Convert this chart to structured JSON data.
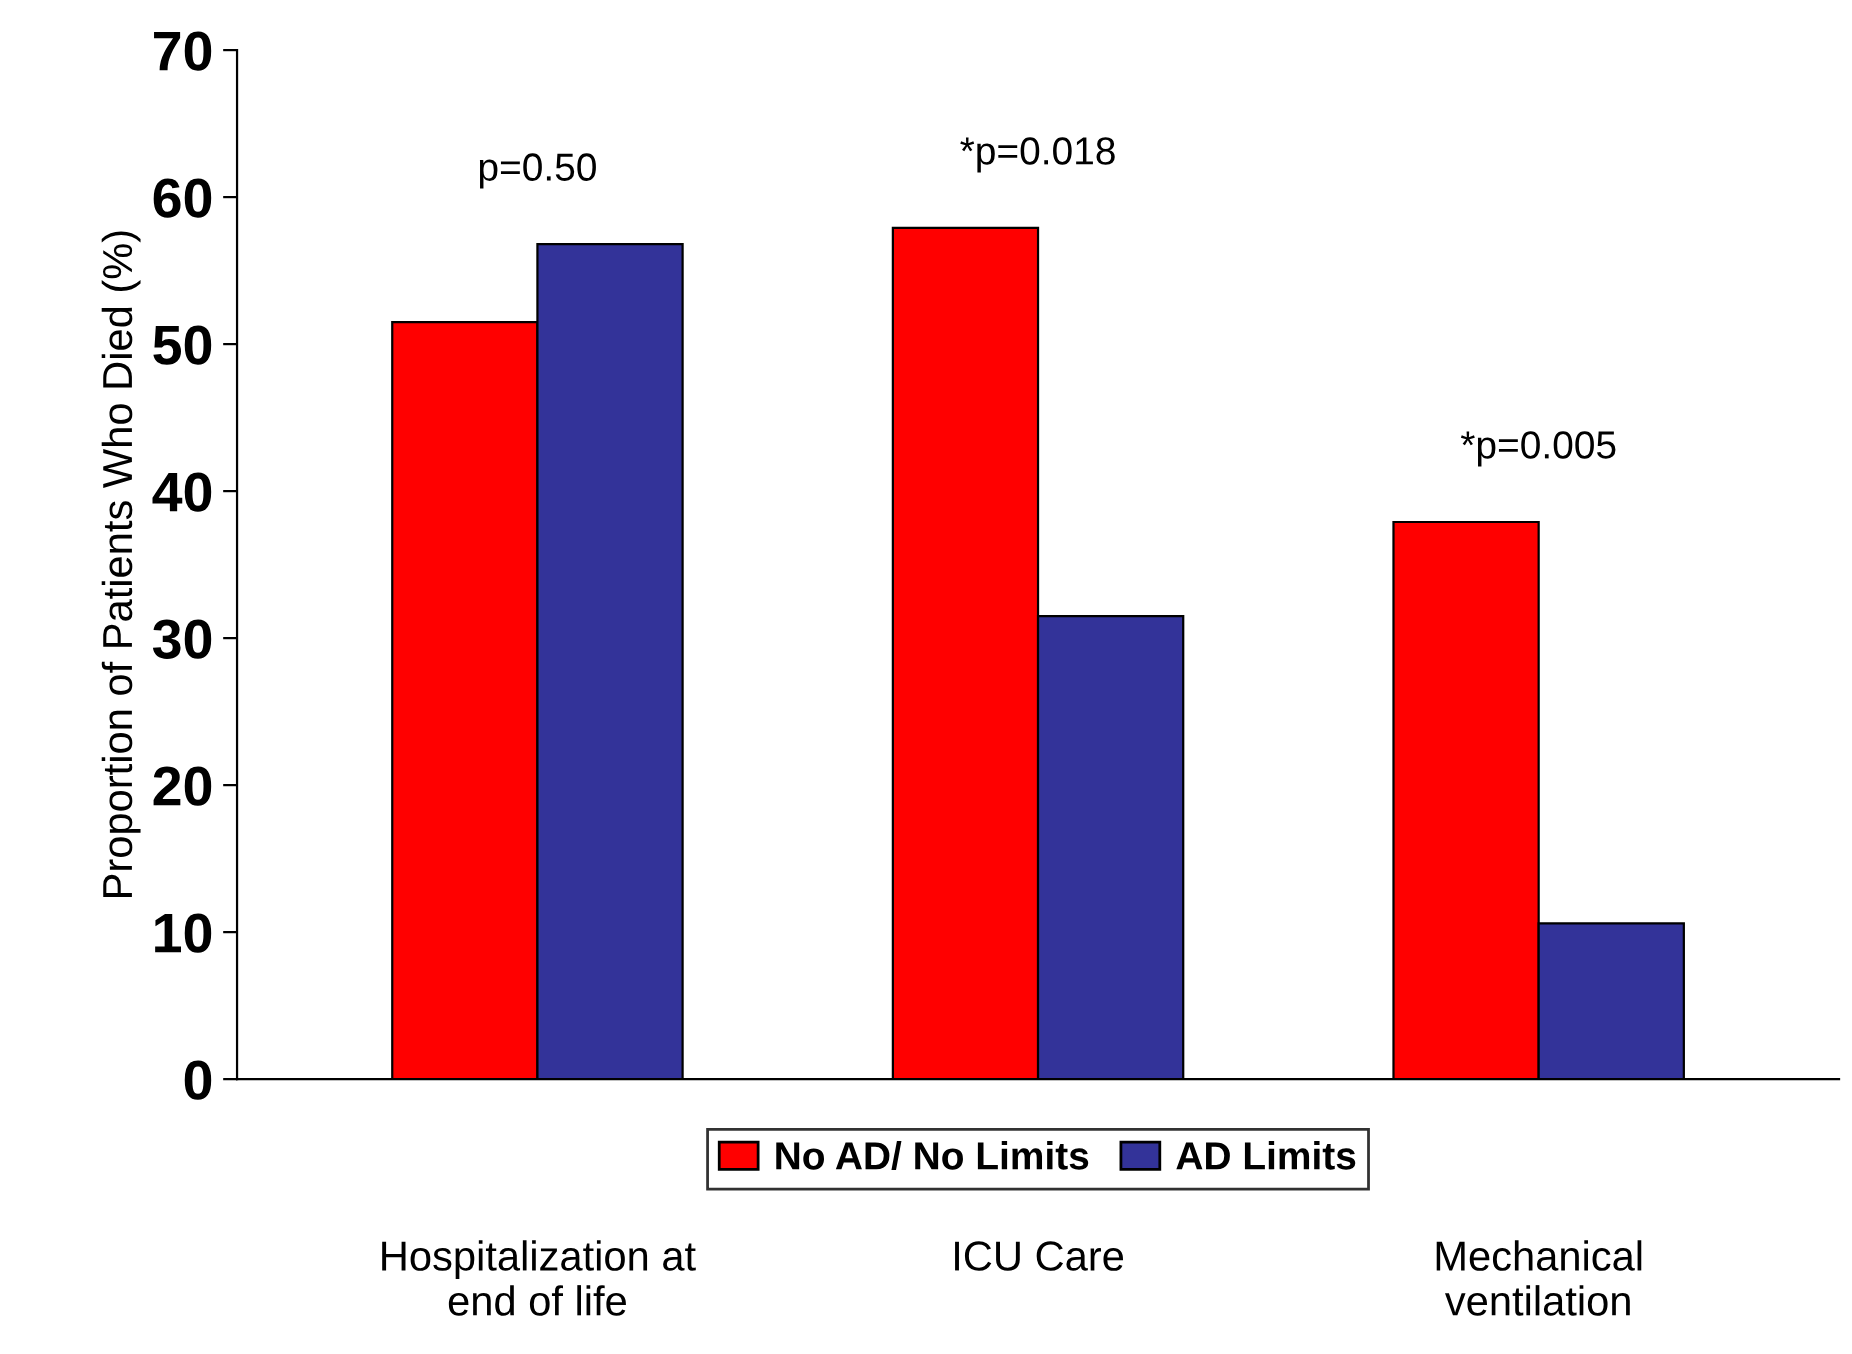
{
  "chart_data": {
    "type": "bar",
    "ylabel": "Proportion of Patients Who Died (%)",
    "categories": [
      "Hospitalization at\nend of life",
      "ICU Care",
      "Mechanical\nventilation"
    ],
    "series": [
      {
        "name": "No AD/ No Limits",
        "color": "#ff0000",
        "values": [
          51.5,
          57.9,
          37.9
        ]
      },
      {
        "name": "AD Limits",
        "color": "#333399",
        "values": [
          56.8,
          31.5,
          10.6
        ]
      }
    ],
    "ylim": [
      0,
      70
    ],
    "yticks": [
      0,
      10,
      20,
      30,
      40,
      50,
      60,
      70
    ],
    "grid": false,
    "legend": "bottom",
    "annotations": [
      "p=0.50",
      "*p=0.018",
      "*p=0.005"
    ]
  }
}
